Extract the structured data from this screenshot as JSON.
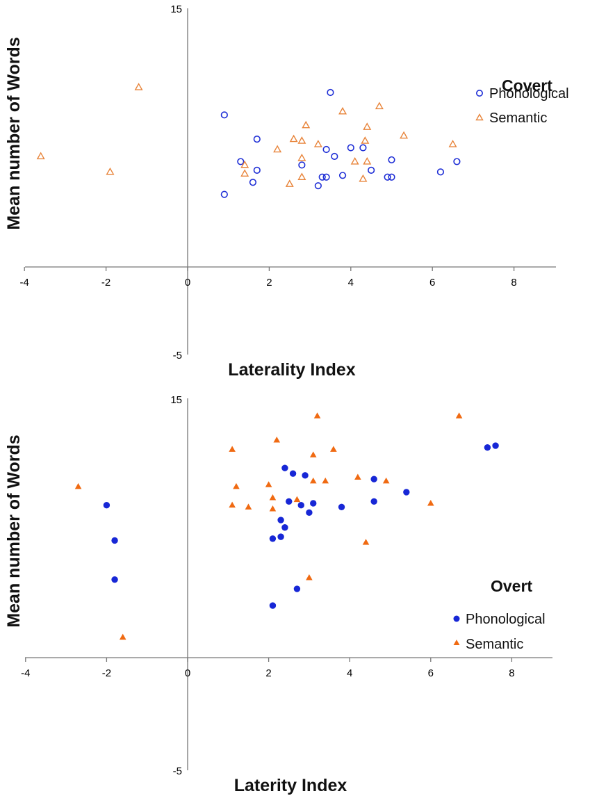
{
  "chart_data": [
    {
      "type": "scatter",
      "title": "",
      "xlabel": "Laterality Index",
      "ylabel": "Mean number of Words",
      "xlim": [
        -4,
        9
      ],
      "ylim": [
        -5,
        15
      ],
      "x_ticks": [
        "-4",
        "-2",
        "0",
        "2",
        "4",
        "6",
        "8"
      ],
      "y_ticks": [
        "15",
        "-5"
      ],
      "legend": {
        "title": "Covert",
        "placement": "top-right"
      },
      "grid": false,
      "series": [
        {
          "name": "Phonological",
          "marker": "open-circle",
          "color": "#1f2fd6",
          "points": [
            [
              0.9,
              8.8
            ],
            [
              1.7,
              7.4
            ],
            [
              1.3,
              6.1
            ],
            [
              1.7,
              5.6
            ],
            [
              1.6,
              4.9
            ],
            [
              0.9,
              4.2
            ],
            [
              2.8,
              5.9
            ],
            [
              3.2,
              4.7
            ],
            [
              3.3,
              5.2
            ],
            [
              3.4,
              5.2
            ],
            [
              3.4,
              6.8
            ],
            [
              3.6,
              6.4
            ],
            [
              3.5,
              10.1
            ],
            [
              3.8,
              5.3
            ],
            [
              4.0,
              6.9
            ],
            [
              4.3,
              6.9
            ],
            [
              4.5,
              5.6
            ],
            [
              4.9,
              5.2
            ],
            [
              5.0,
              5.2
            ],
            [
              5.0,
              6.2
            ],
            [
              6.2,
              5.5
            ],
            [
              6.6,
              6.1
            ]
          ]
        },
        {
          "name": "Semantic",
          "marker": "open-triangle",
          "color": "#e8843a",
          "points": [
            [
              -3.6,
              6.4
            ],
            [
              -1.9,
              5.5
            ],
            [
              -1.2,
              10.4
            ],
            [
              1.4,
              5.9
            ],
            [
              1.4,
              5.4
            ],
            [
              2.2,
              6.8
            ],
            [
              2.5,
              4.8
            ],
            [
              2.6,
              7.4
            ],
            [
              2.8,
              7.3
            ],
            [
              2.8,
              6.3
            ],
            [
              2.8,
              5.2
            ],
            [
              2.9,
              8.2
            ],
            [
              3.2,
              7.1
            ],
            [
              3.8,
              9.0
            ],
            [
              4.1,
              6.1
            ],
            [
              4.3,
              5.1
            ],
            [
              4.35,
              7.3
            ],
            [
              4.4,
              6.1
            ],
            [
              4.4,
              8.1
            ],
            [
              4.7,
              9.3
            ],
            [
              5.3,
              7.6
            ],
            [
              6.5,
              7.1
            ]
          ]
        }
      ]
    },
    {
      "type": "scatter",
      "title": "",
      "xlabel": "Laterity Index",
      "ylabel": "Mean number of Words",
      "xlim": [
        -4,
        9
      ],
      "ylim": [
        -5,
        15
      ],
      "x_ticks": [
        "-4",
        "-2",
        "0",
        "2",
        "4",
        "6",
        "8"
      ],
      "y_ticks": [
        "15",
        "-5"
      ],
      "legend": {
        "title": "Overt",
        "placement": "bottom-right"
      },
      "grid": false,
      "series": [
        {
          "name": "Phonological",
          "marker": "filled-circle",
          "color": "#1727d6",
          "points": [
            [
              -2.0,
              8.2
            ],
            [
              -1.8,
              6.3
            ],
            [
              -1.8,
              4.2
            ],
            [
              2.1,
              2.8
            ],
            [
              2.1,
              6.4
            ],
            [
              2.3,
              6.5
            ],
            [
              2.3,
              7.4
            ],
            [
              2.4,
              7.0
            ],
            [
              2.4,
              10.2
            ],
            [
              2.5,
              8.4
            ],
            [
              2.6,
              9.9
            ],
            [
              2.7,
              3.7
            ],
            [
              2.8,
              8.2
            ],
            [
              2.9,
              9.8
            ],
            [
              3.0,
              7.8
            ],
            [
              3.1,
              8.3
            ],
            [
              3.8,
              8.1
            ],
            [
              4.6,
              9.6
            ],
            [
              4.6,
              8.4
            ],
            [
              5.4,
              8.9
            ],
            [
              7.4,
              11.3
            ],
            [
              7.6,
              11.4
            ]
          ]
        },
        {
          "name": "Semantic",
          "marker": "filled-triangle",
          "color": "#f06a12",
          "points": [
            [
              -2.7,
              9.2
            ],
            [
              -1.6,
              1.1
            ],
            [
              1.1,
              11.2
            ],
            [
              1.1,
              8.2
            ],
            [
              1.2,
              9.2
            ],
            [
              1.5,
              8.1
            ],
            [
              2.0,
              9.3
            ],
            [
              2.1,
              8.6
            ],
            [
              2.1,
              8.0
            ],
            [
              2.2,
              11.7
            ],
            [
              2.7,
              8.5
            ],
            [
              3.0,
              4.3
            ],
            [
              3.1,
              10.9
            ],
            [
              3.1,
              9.5
            ],
            [
              3.2,
              13.0
            ],
            [
              3.4,
              9.5
            ],
            [
              3.6,
              11.2
            ],
            [
              4.2,
              9.7
            ],
            [
              4.4,
              6.2
            ],
            [
              4.9,
              9.5
            ],
            [
              6.0,
              8.3
            ],
            [
              6.7,
              13.0
            ]
          ]
        }
      ]
    }
  ]
}
